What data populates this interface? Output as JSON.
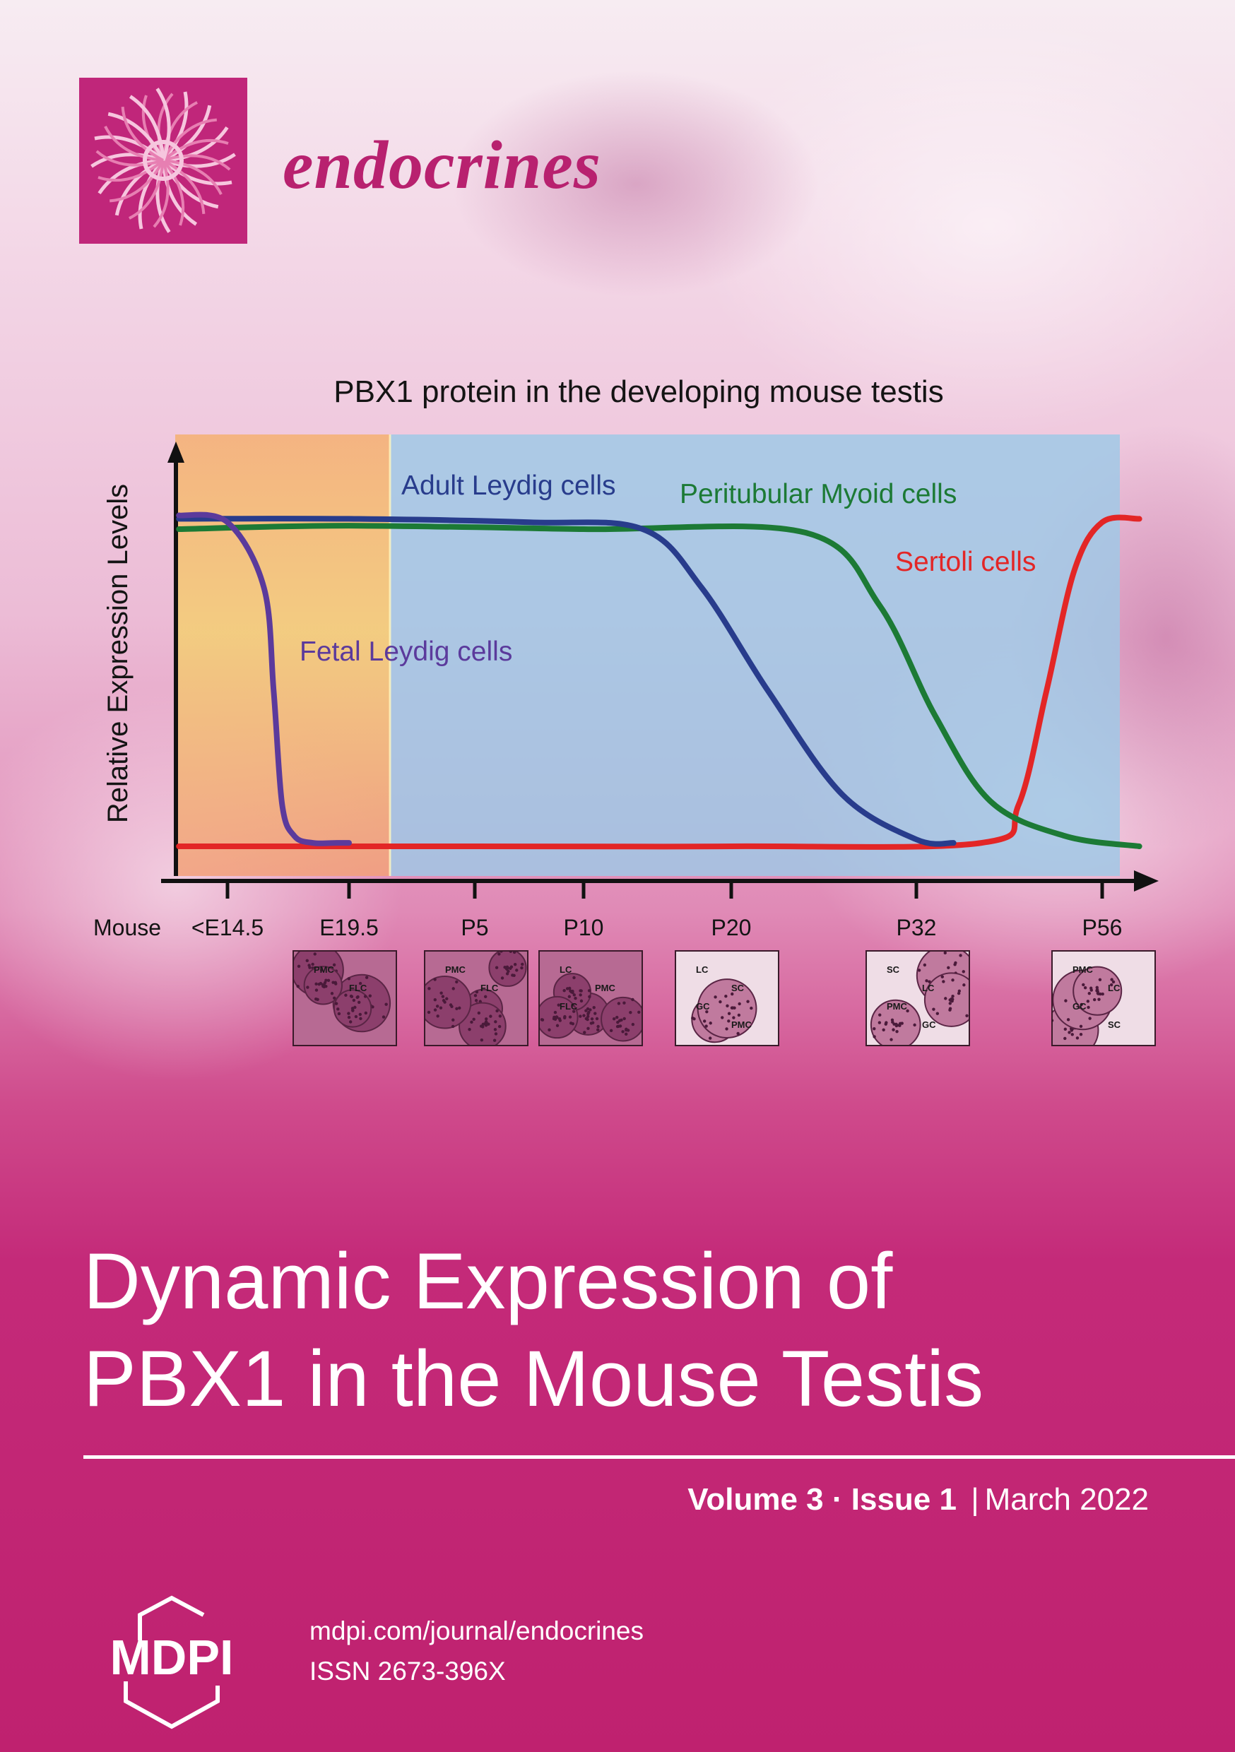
{
  "journal": {
    "name": "endocrines"
  },
  "cover": {
    "title_line1": "Dynamic Expression of",
    "title_line2": "PBX1 in the Mouse Testis",
    "volume": "Volume 3",
    "dot": "·",
    "issue": "Issue 1",
    "separator": "|",
    "date": "March 2022"
  },
  "publisher": {
    "logo_text": "MDPI",
    "url": "mdpi.com/journal/endocrines",
    "issn": "ISSN 2673-396X"
  },
  "colors": {
    "brand": "#bf216f",
    "fetal": "#5b3a9c",
    "adult": "#283c8c",
    "myoid": "#1c7a35",
    "sertoli": "#e32626",
    "fetal_bg": "#f4cf72",
    "postnatal_bg": "#9ec9e6"
  },
  "chart_data": {
    "type": "line",
    "title": "PBX1 protein in the developing mouse testis",
    "xlabel": "",
    "ylabel": "Relative Expression Levels",
    "x_prefix_label": "Mouse",
    "ticks": [
      "<E14.5",
      "E19.5",
      "P5",
      "P10",
      "P20",
      "P32",
      "P56"
    ],
    "shaded_regions": [
      {
        "from": 0,
        "to": 1.35,
        "color": "fetal_bg"
      },
      {
        "from": 1.35,
        "to": 6.2,
        "color": "postnatal_bg"
      }
    ],
    "series": [
      {
        "name": "Fetal Leydig cells",
        "color_key": "fetal",
        "x": [
          -0.4,
          0.0,
          0.3,
          0.38,
          0.45,
          0.55,
          0.7,
          0.9,
          1.0
        ],
        "y": [
          0.96,
          0.94,
          0.75,
          0.45,
          0.12,
          0.03,
          0.01,
          0.01,
          0.01
        ]
      },
      {
        "name": "Adult Leydig cells",
        "color_key": "adult",
        "x": [
          -0.4,
          1.0,
          2.5,
          3.4,
          3.8,
          4.2,
          4.6,
          5.0,
          5.2
        ],
        "y": [
          0.95,
          0.95,
          0.94,
          0.92,
          0.75,
          0.45,
          0.15,
          0.02,
          0.01
        ]
      },
      {
        "name": "Peritubular Myoid cells",
        "color_key": "myoid",
        "x": [
          -0.4,
          1.0,
          3.0,
          4.4,
          4.8,
          5.1,
          5.4,
          5.8,
          6.2
        ],
        "y": [
          0.92,
          0.93,
          0.92,
          0.91,
          0.7,
          0.38,
          0.13,
          0.03,
          0.0
        ]
      },
      {
        "name": "Sertoli cells",
        "color_key": "sertoli",
        "x": [
          -0.4,
          2.0,
          4.0,
          5.35,
          5.55,
          5.7,
          5.85,
          6.0,
          6.2
        ],
        "y": [
          0.0,
          0.0,
          0.0,
          0.01,
          0.12,
          0.45,
          0.8,
          0.94,
          0.95
        ]
      }
    ],
    "micrograph_labels": [
      [
        "PMC",
        "FLC"
      ],
      [
        "PMC",
        "FLC"
      ],
      [
        "LC",
        "PMC",
        "FLC"
      ],
      [
        "LC",
        "SC",
        "GC",
        "PMC"
      ],
      [
        "SC",
        "LC",
        "PMC",
        "GC"
      ],
      [
        "PMC",
        "LC",
        "GC",
        "SC"
      ]
    ],
    "grid": false,
    "legend": "labels-on-curves"
  }
}
